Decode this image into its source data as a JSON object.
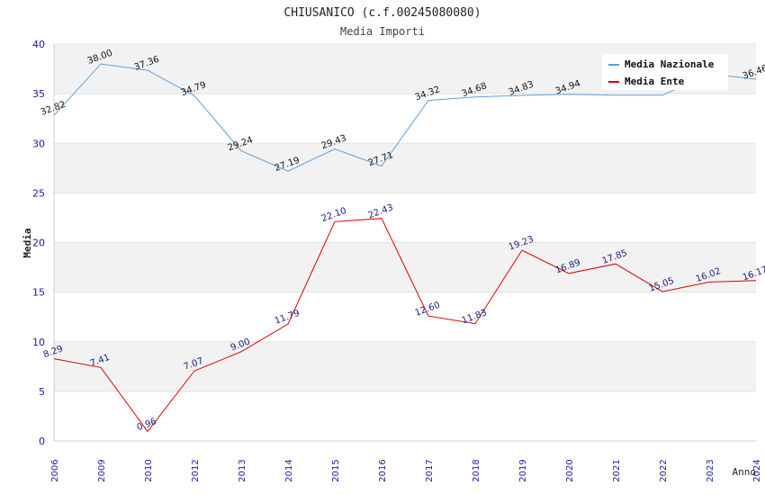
{
  "chart_data": {
    "type": "line",
    "title": "CHIUSANICO (c.f.00245080080)",
    "subtitle": "Media Importi",
    "xlabel": "Anno",
    "ylabel": "Media",
    "ylim": [
      0,
      40
    ],
    "yticks": [
      0,
      5,
      10,
      15,
      20,
      25,
      30,
      35,
      40
    ],
    "categories": [
      "2006",
      "2009",
      "2010",
      "2012",
      "2013",
      "2014",
      "2015",
      "2016",
      "2017",
      "2018",
      "2019",
      "2020",
      "2021",
      "2022",
      "2023",
      "2024"
    ],
    "series": [
      {
        "name": "Media Nazionale",
        "color": "#5aa0e0",
        "values": [
          32.82,
          38.0,
          37.36,
          34.79,
          29.24,
          27.19,
          29.43,
          27.71,
          34.32,
          34.68,
          34.83,
          34.94,
          34.85,
          34.85,
          37.0,
          36.46
        ],
        "labels": [
          "32.82",
          "38.00",
          "37.36",
          "34.79",
          "29.24",
          "27.19",
          "29.43",
          "27.71",
          "34.32",
          "34.68",
          "34.83",
          "34.94",
          "",
          "",
          "",
          "36.46"
        ]
      },
      {
        "name": "Media Ente",
        "color": "#dd0000",
        "values": [
          8.29,
          7.41,
          0.96,
          7.07,
          9.0,
          11.79,
          22.1,
          22.43,
          12.6,
          11.83,
          19.23,
          16.89,
          17.85,
          15.05,
          16.02,
          16.17
        ],
        "labels": [
          "8.29",
          "7.41",
          "0.96",
          "7.07",
          "9.00",
          "11.79",
          "22.10",
          "22.43",
          "12.60",
          "11.83",
          "19.23",
          "16.89",
          "17.85",
          "15.05",
          "16.02",
          "16.17"
        ]
      }
    ],
    "legend_position": "top-right",
    "grid": true
  }
}
